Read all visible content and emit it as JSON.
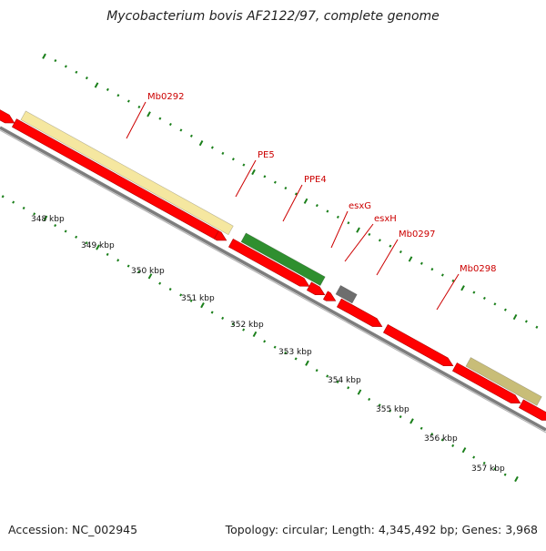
{
  "title": "Mycobacterium bovis AF2122/97, complete genome",
  "footer": {
    "accession": "Accession: NC_002945",
    "summary": "Topology: circular; Length: 4,345,492 bp; Genes: 3,968"
  },
  "colors": {
    "gene_forward": "#ff0000",
    "gene_reverse": "#ff0000",
    "cds_pale_yellow": "#f5e7a0",
    "cds_green": "#2f8f2f",
    "cds_grey": "#6e6e6e",
    "cds_olive": "#c8bd78",
    "backbone": "#8a8a8a",
    "ticks": "#1a7f1a",
    "labels": "#cc0000"
  },
  "kbp_labels": [
    "348 kbp",
    "349 kbp",
    "350 kbp",
    "351 kbp",
    "352 kbp",
    "353 kbp",
    "354 kbp",
    "355 kbp",
    "356 kbp",
    "357 kbp"
  ],
  "gene_labels": [
    "Mb0292",
    "PE5",
    "PPE4",
    "esxG",
    "esxH",
    "Mb0297",
    "Mb0298"
  ]
}
